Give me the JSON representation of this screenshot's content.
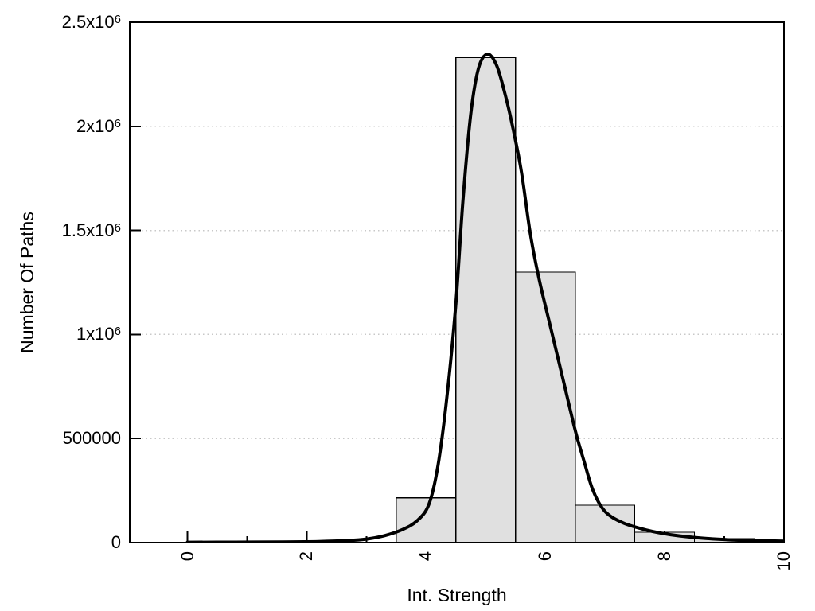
{
  "colors": {
    "background": "#ffffff",
    "frame": "#000000",
    "bar_fill": "#e0e0e0",
    "bar_stroke": "#000000",
    "curve": "#000000",
    "grid": "#c8c8c8",
    "text": "#000000"
  },
  "chart_data": {
    "type": "bar",
    "subtype": "histogram-with-fit-curve",
    "title": "",
    "xlabel": "Int. Strength",
    "ylabel": "Number Of Paths",
    "xlim": [
      -0.95,
      10
    ],
    "ylim": [
      0,
      2500000
    ],
    "grid": "horizontal-dotted",
    "legend": "none",
    "x_ticks": [
      {
        "value": 0,
        "label": "0"
      },
      {
        "value": 2,
        "label": "2"
      },
      {
        "value": 4,
        "label": "4"
      },
      {
        "value": 6,
        "label": "6"
      },
      {
        "value": 8,
        "label": "8"
      },
      {
        "value": 10,
        "label": "10"
      }
    ],
    "x_minor_ticks": [
      1,
      3,
      5,
      7,
      9
    ],
    "x_tick_label_rotation": -90,
    "y_ticks": [
      {
        "value": 0,
        "label": "0"
      },
      {
        "value": 500000,
        "label": "500000"
      },
      {
        "value": 1000000,
        "label": "1x10",
        "sup": "6"
      },
      {
        "value": 1500000,
        "label": "1.5x10",
        "sup": "6"
      },
      {
        "value": 2000000,
        "label": "2x10",
        "sup": "6"
      },
      {
        "value": 2500000,
        "label": "2.5x10",
        "sup": "6"
      }
    ],
    "histogram": {
      "bin_width": 1,
      "bins": [
        {
          "center": 4,
          "count": 215000
        },
        {
          "center": 5,
          "count": 2330000
        },
        {
          "center": 6,
          "count": 1300000
        },
        {
          "center": 7,
          "count": 180000
        },
        {
          "center": 8,
          "count": 50000
        },
        {
          "center": 9,
          "count": 19000
        },
        {
          "center": 10,
          "count": 8000
        }
      ]
    },
    "fit_curve": {
      "points": [
        [
          0,
          1500
        ],
        [
          0.8,
          2000
        ],
        [
          1.6,
          3000
        ],
        [
          2.2,
          5000
        ],
        [
          2.7,
          10000
        ],
        [
          3.0,
          17000
        ],
        [
          3.3,
          33000
        ],
        [
          3.6,
          62000
        ],
        [
          3.85,
          105000
        ],
        [
          4.05,
          185000
        ],
        [
          4.2,
          370000
        ],
        [
          4.35,
          700000
        ],
        [
          4.5,
          1150000
        ],
        [
          4.62,
          1650000
        ],
        [
          4.75,
          2060000
        ],
        [
          4.88,
          2280000
        ],
        [
          5.03,
          2347000
        ],
        [
          5.18,
          2295000
        ],
        [
          5.32,
          2160000
        ],
        [
          5.45,
          2000000
        ],
        [
          5.6,
          1780000
        ],
        [
          5.75,
          1480000
        ],
        [
          5.9,
          1260000
        ],
        [
          6.1,
          1020000
        ],
        [
          6.3,
          780000
        ],
        [
          6.5,
          540000
        ],
        [
          6.65,
          390000
        ],
        [
          6.8,
          250000
        ],
        [
          7.0,
          150000
        ],
        [
          7.3,
          95000
        ],
        [
          7.7,
          60000
        ],
        [
          8.1,
          38000
        ],
        [
          8.6,
          22000
        ],
        [
          9.1,
          13000
        ],
        [
          9.6,
          9000
        ],
        [
          10,
          7000
        ]
      ]
    }
  }
}
